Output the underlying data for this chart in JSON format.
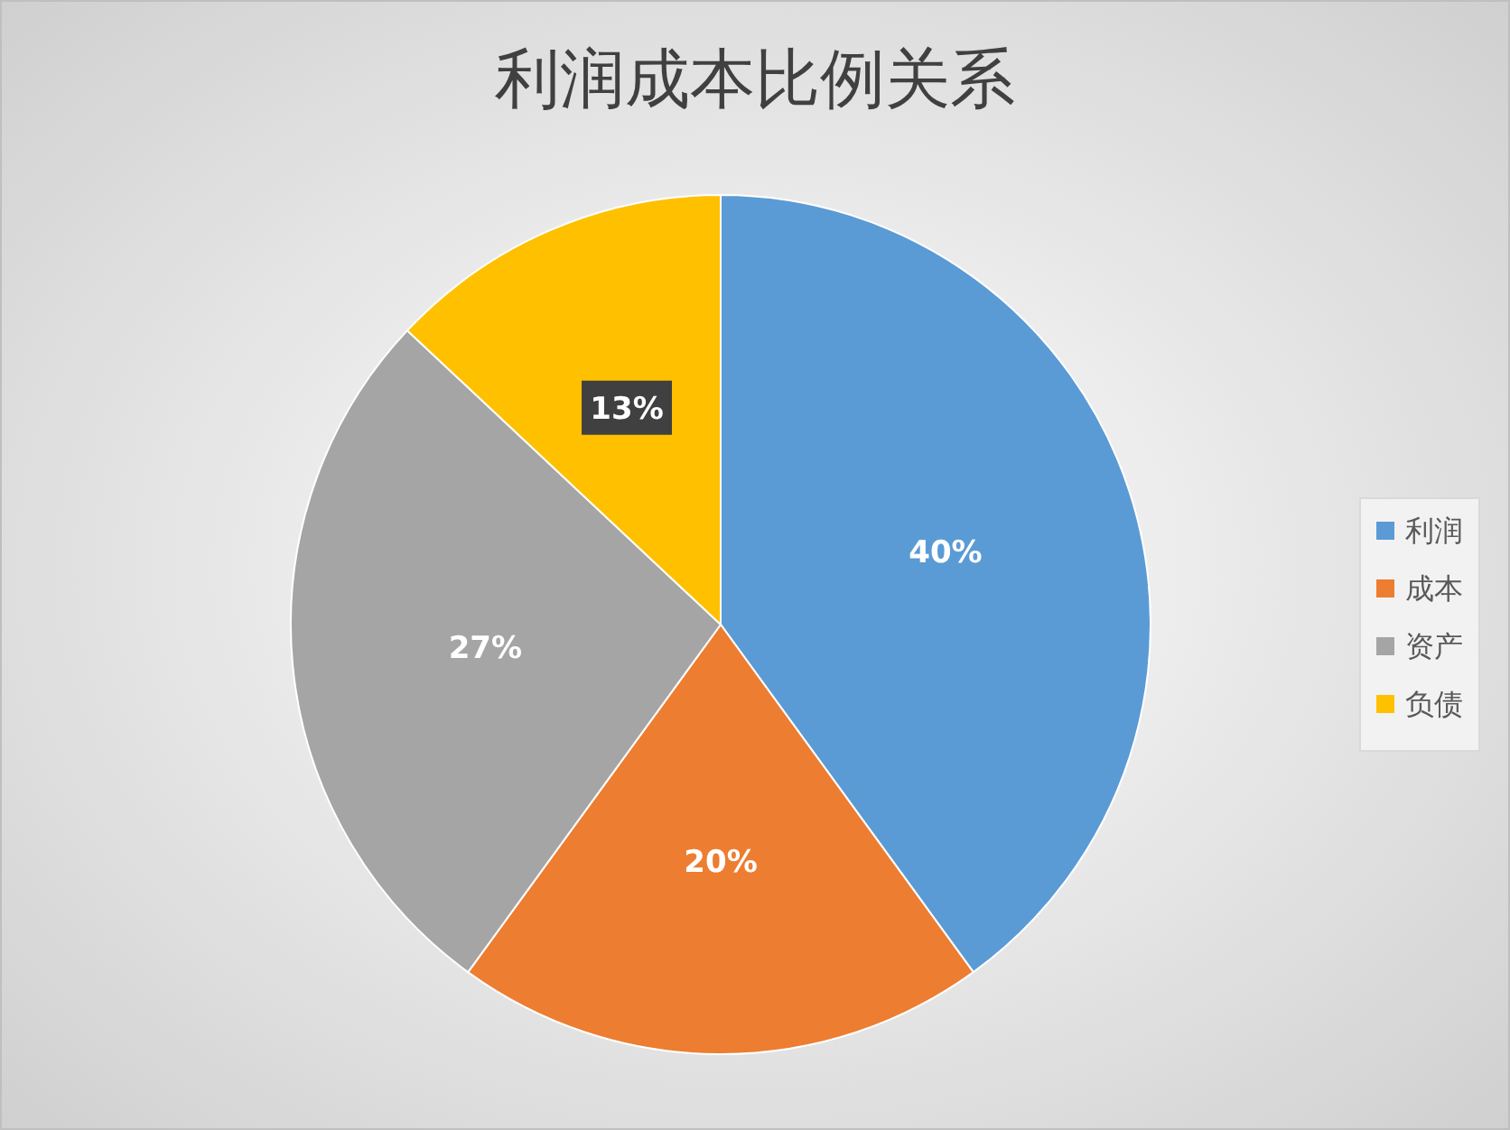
{
  "chart_data": {
    "type": "pie",
    "title": "利润成本比例关系",
    "categories": [
      "利润",
      "成本",
      "资产",
      "负债"
    ],
    "values": [
      40,
      20,
      27,
      13
    ],
    "colors": [
      "#5b9bd5",
      "#ed7d31",
      "#a5a5a5",
      "#ffc000"
    ],
    "value_labels": [
      "40%",
      "20%",
      "27%",
      "13%"
    ],
    "legend": "right"
  }
}
